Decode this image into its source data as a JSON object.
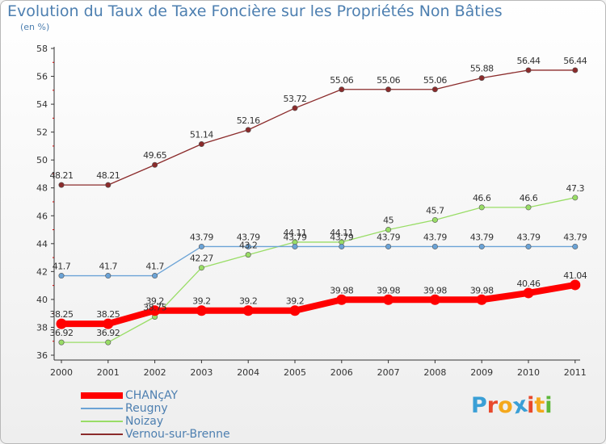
{
  "title": "Evolution du Taux de Taxe Foncière sur les Propriétés Non Bâties",
  "subtitle": "(en %)",
  "logo": {
    "text": "Proxiti",
    "letters": [
      "P",
      "r",
      "o",
      "x",
      "i",
      "t",
      "i"
    ],
    "colors": [
      "#3a9fd6",
      "#e8492c",
      "#f4a81c",
      "#3a9fd6",
      "#e8492c",
      "#f4a81c",
      "#5db83a"
    ]
  },
  "chart_data": {
    "type": "line",
    "title": "Evolution du Taux de Taxe Foncière sur les Propriétés Non Bâties",
    "ylabel": "(en %)",
    "xlabel": "",
    "x": [
      "2000",
      "2001",
      "2002",
      "2003",
      "2004",
      "2005",
      "2006",
      "2007",
      "2008",
      "2009",
      "2010",
      "2011"
    ],
    "ylim": [
      36,
      58
    ],
    "yticks": [
      "36",
      "38",
      "40",
      "42",
      "44",
      "46",
      "48",
      "50",
      "52",
      "54",
      "56",
      "58"
    ],
    "grid": false,
    "legend": "bottom-left",
    "series": [
      {
        "name": "CHANçAY",
        "color": "#ff0000",
        "values": [
          38.25,
          38.25,
          39.2,
          39.2,
          39.2,
          39.2,
          39.98,
          39.98,
          39.98,
          39.98,
          40.46,
          41.04
        ],
        "labels": [
          "38.25",
          "38.25",
          "39.2",
          "39.2",
          "39.2",
          "39.2",
          "39.98",
          "39.98",
          "39.98",
          "39.98",
          "40.46",
          "41.04"
        ]
      },
      {
        "name": "Reugny",
        "color": "#6ba3d6",
        "values": [
          41.7,
          41.7,
          41.7,
          43.79,
          43.79,
          43.79,
          43.79,
          43.79,
          43.79,
          43.79,
          43.79,
          43.79
        ],
        "labels": [
          "41.7",
          "41.7",
          "41.7",
          "43.79",
          "43.79",
          "43.79",
          "43.79",
          "43.79",
          "43.79",
          "43.79",
          "43.79",
          "43.79"
        ]
      },
      {
        "name": "Noizay",
        "color": "#99dd66",
        "values": [
          36.92,
          36.92,
          38.75,
          42.27,
          43.2,
          44.11,
          44.11,
          45,
          45.7,
          46.6,
          46.6,
          47.3
        ],
        "labels": [
          "36.92",
          "36.92",
          "38.75",
          "42.27",
          "43.2",
          "44.11",
          "44.11",
          "45",
          "45.7",
          "46.6",
          "46.6",
          "47.3"
        ]
      },
      {
        "name": "Vernou-sur-Brenne",
        "color": "#8b2b2b",
        "values": [
          48.21,
          48.21,
          49.65,
          51.14,
          52.16,
          53.72,
          55.06,
          55.06,
          55.06,
          55.88,
          56.44,
          56.44
        ],
        "labels": [
          "48.21",
          "48.21",
          "49.65",
          "51.14",
          "52.16",
          "53.72",
          "55.06",
          "55.06",
          "55.06",
          "55.88",
          "56.44",
          "56.44"
        ]
      }
    ]
  }
}
